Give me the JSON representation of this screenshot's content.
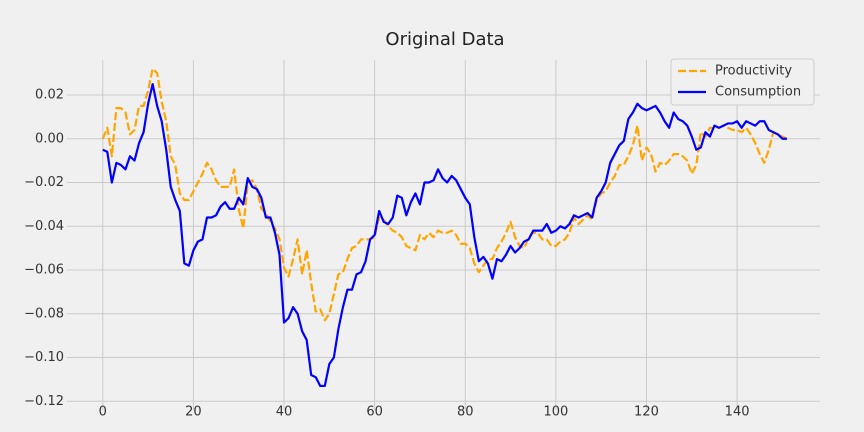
{
  "chart_data": {
    "type": "line",
    "title": "Original Data",
    "x": [
      0,
      1,
      2,
      3,
      4,
      5,
      6,
      7,
      8,
      9,
      10,
      11,
      12,
      13,
      14,
      15,
      16,
      17,
      18,
      19,
      20,
      21,
      22,
      23,
      24,
      25,
      26,
      27,
      28,
      29,
      30,
      31,
      32,
      33,
      34,
      35,
      36,
      37,
      38,
      39,
      40,
      41,
      42,
      43,
      44,
      45,
      46,
      47,
      48,
      49,
      50,
      51,
      52,
      53,
      54,
      55,
      56,
      57,
      58,
      59,
      60,
      61,
      62,
      63,
      64,
      65,
      66,
      67,
      68,
      69,
      70,
      71,
      72,
      73,
      74,
      75,
      76,
      77,
      78,
      79,
      80,
      81,
      82,
      83,
      84,
      85,
      86,
      87,
      88,
      89,
      90,
      91,
      92,
      93,
      94,
      95,
      96,
      97,
      98,
      99,
      100,
      101,
      102,
      103,
      104,
      105,
      106,
      107,
      108,
      109,
      110,
      111,
      112,
      113,
      114,
      115,
      116,
      117,
      118,
      119,
      120,
      121,
      122,
      123,
      124,
      125,
      126,
      127,
      128,
      129,
      130,
      131,
      132,
      133,
      134,
      135,
      136,
      137,
      138,
      139,
      140,
      141,
      142,
      143,
      144,
      145,
      146,
      147,
      148,
      149,
      150,
      151
    ],
    "series": [
      {
        "name": "Productivity",
        "color": "#ffa500",
        "dash": true,
        "values": [
          0.0,
          0.005,
          -0.008,
          0.014,
          0.014,
          0.012,
          0.002,
          0.004,
          0.015,
          0.015,
          0.022,
          0.032,
          0.03,
          0.017,
          0.008,
          -0.008,
          -0.012,
          -0.025,
          -0.028,
          -0.028,
          -0.024,
          -0.02,
          -0.016,
          -0.011,
          -0.014,
          -0.019,
          -0.022,
          -0.022,
          -0.022,
          -0.014,
          -0.032,
          -0.041,
          -0.02,
          -0.019,
          -0.023,
          -0.032,
          -0.034,
          -0.038,
          -0.041,
          -0.046,
          -0.059,
          -0.063,
          -0.055,
          -0.046,
          -0.062,
          -0.051,
          -0.066,
          -0.079,
          -0.078,
          -0.083,
          -0.08,
          -0.071,
          -0.062,
          -0.061,
          -0.055,
          -0.05,
          -0.049,
          -0.046,
          -0.046,
          -0.046,
          -0.045,
          -0.036,
          -0.037,
          -0.04,
          -0.042,
          -0.043,
          -0.045,
          -0.049,
          -0.05,
          -0.051,
          -0.044,
          -0.046,
          -0.043,
          -0.045,
          -0.042,
          -0.043,
          -0.043,
          -0.042,
          -0.044,
          -0.048,
          -0.048,
          -0.05,
          -0.057,
          -0.061,
          -0.058,
          -0.055,
          -0.055,
          -0.05,
          -0.047,
          -0.043,
          -0.038,
          -0.045,
          -0.049,
          -0.05,
          -0.045,
          -0.043,
          -0.043,
          -0.046,
          -0.046,
          -0.049,
          -0.049,
          -0.047,
          -0.046,
          -0.043,
          -0.036,
          -0.039,
          -0.037,
          -0.035,
          -0.037,
          -0.028,
          -0.025,
          -0.024,
          -0.02,
          -0.017,
          -0.012,
          -0.012,
          -0.008,
          -0.003,
          0.006,
          -0.01,
          -0.004,
          -0.007,
          -0.015,
          -0.011,
          -0.012,
          -0.01,
          -0.007,
          -0.007,
          -0.008,
          -0.01,
          -0.016,
          -0.012,
          0.003,
          0.001,
          0.005,
          0.005,
          0.005,
          0.006,
          0.005,
          0.004,
          0.004,
          0.003,
          0.005,
          0.002,
          -0.002,
          -0.007,
          -0.011,
          -0.005,
          0.003,
          0.002,
          0.001,
          0.0
        ]
      },
      {
        "name": "Consumption",
        "color": "#0000ff",
        "dash": false,
        "values": [
          -0.005,
          -0.006,
          -0.02,
          -0.011,
          -0.012,
          -0.014,
          -0.008,
          -0.01,
          -0.002,
          0.003,
          0.016,
          0.025,
          0.015,
          0.008,
          -0.005,
          -0.022,
          -0.028,
          -0.033,
          -0.057,
          -0.058,
          -0.051,
          -0.047,
          -0.046,
          -0.036,
          -0.036,
          -0.035,
          -0.031,
          -0.029,
          -0.032,
          -0.032,
          -0.027,
          -0.03,
          -0.018,
          -0.022,
          -0.023,
          -0.027,
          -0.036,
          -0.036,
          -0.043,
          -0.053,
          -0.084,
          -0.082,
          -0.077,
          -0.08,
          -0.088,
          -0.092,
          -0.108,
          -0.109,
          -0.113,
          -0.113,
          -0.103,
          -0.1,
          -0.087,
          -0.077,
          -0.069,
          -0.069,
          -0.062,
          -0.061,
          -0.056,
          -0.046,
          -0.044,
          -0.033,
          -0.038,
          -0.039,
          -0.036,
          -0.026,
          -0.027,
          -0.035,
          -0.029,
          -0.025,
          -0.03,
          -0.02,
          -0.02,
          -0.019,
          -0.014,
          -0.018,
          -0.02,
          -0.017,
          -0.019,
          -0.023,
          -0.027,
          -0.03,
          -0.045,
          -0.056,
          -0.054,
          -0.057,
          -0.064,
          -0.055,
          -0.056,
          -0.053,
          -0.049,
          -0.052,
          -0.05,
          -0.047,
          -0.046,
          -0.042,
          -0.042,
          -0.042,
          -0.039,
          -0.043,
          -0.042,
          -0.04,
          -0.041,
          -0.039,
          -0.035,
          -0.036,
          -0.035,
          -0.034,
          -0.036,
          -0.027,
          -0.024,
          -0.02,
          -0.011,
          -0.007,
          -0.003,
          -0.001,
          0.009,
          0.012,
          0.016,
          0.014,
          0.013,
          0.014,
          0.015,
          0.012,
          0.008,
          0.005,
          0.012,
          0.009,
          0.008,
          0.006,
          0.001,
          -0.005,
          -0.004,
          0.003,
          0.001,
          0.006,
          0.005,
          0.006,
          0.007,
          0.007,
          0.008,
          0.005,
          0.008,
          0.007,
          0.006,
          0.008,
          0.008,
          0.004,
          0.003,
          0.002,
          0.0,
          0.0
        ]
      }
    ],
    "xlim": [
      -7.9,
      158.3
    ],
    "xticks": [
      0,
      20,
      40,
      60,
      80,
      100,
      120,
      140
    ],
    "ylim": [
      -0.124,
      0.036
    ],
    "yticks": [
      {
        "value": -0.12,
        "label": "−0.12"
      },
      {
        "value": -0.1,
        "label": "−0.10"
      },
      {
        "value": -0.08,
        "label": "−0.08"
      },
      {
        "value": -0.06,
        "label": "−0.06"
      },
      {
        "value": -0.04,
        "label": "−0.04"
      },
      {
        "value": -0.02,
        "label": "−0.02"
      },
      {
        "value": 0,
        "label": "0.00"
      },
      0.02
    ],
    "grid": true,
    "legend": "upper right"
  }
}
